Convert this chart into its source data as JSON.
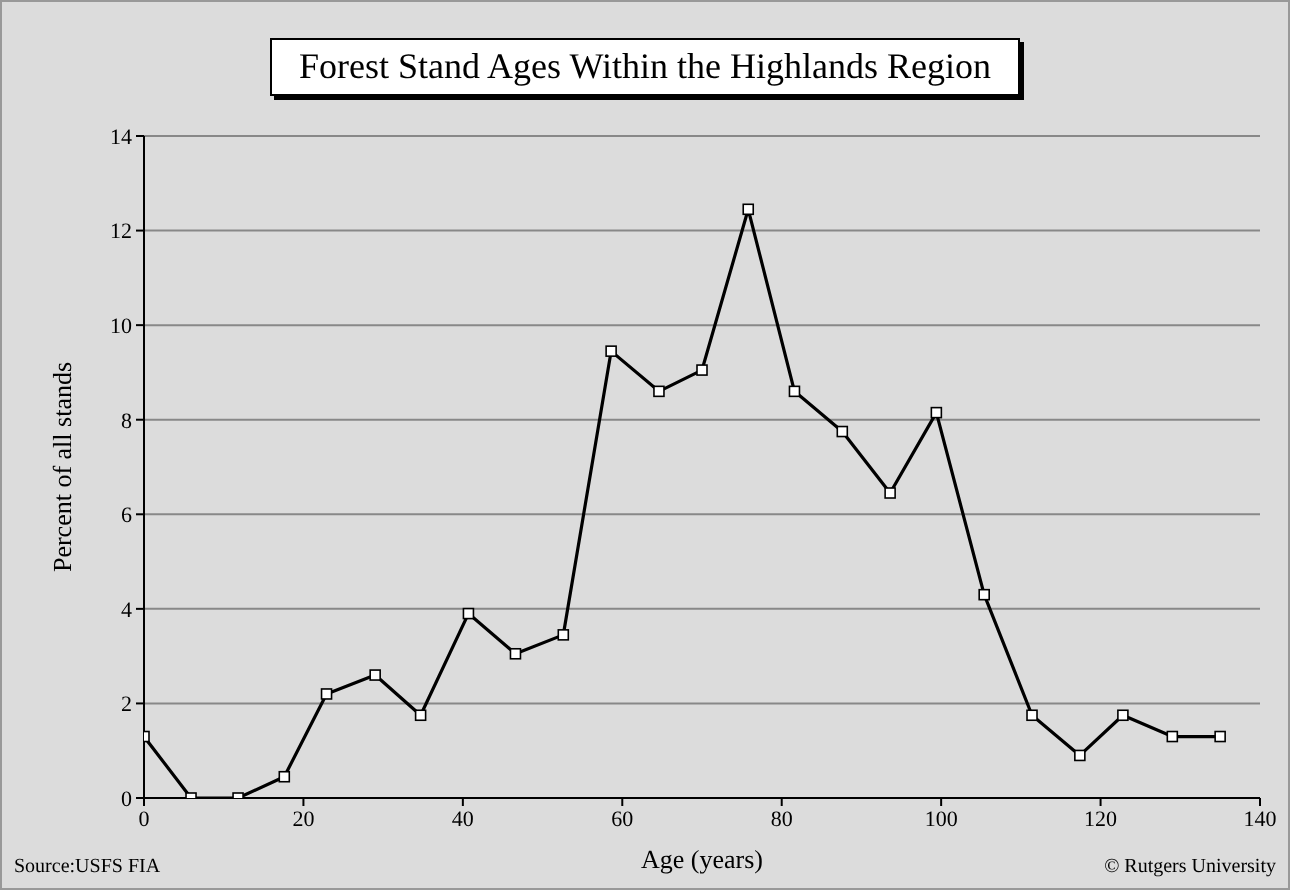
{
  "chart_data": {
    "type": "line",
    "title": "Forest Stand Ages Within the Highlands Region",
    "xlabel": "Age (years)",
    "ylabel": "Percent of all stands",
    "x": [
      0,
      5.9,
      11.8,
      17.6,
      22.9,
      29,
      34.7,
      40.7,
      46.6,
      52.6,
      58.6,
      64.6,
      70,
      75.8,
      81.6,
      87.6,
      93.6,
      99.4,
      105.4,
      111.4,
      117.4,
      122.8,
      129,
      135
    ],
    "series": [
      {
        "color": "#000000",
        "values": [
          1.3,
          0,
          0,
          0.45,
          2.2,
          2.6,
          1.75,
          3.9,
          3.05,
          3.45,
          9.45,
          8.6,
          9.05,
          12.45,
          8.6,
          7.75,
          6.45,
          8.15,
          4.3,
          1.75,
          0.9,
          1.75,
          1.3,
          1.3
        ]
      }
    ],
    "xlim": [
      0,
      140
    ],
    "xticks": [
      0,
      20,
      40,
      60,
      80,
      100,
      120,
      140
    ],
    "ylim": [
      0,
      14
    ],
    "yticks": [
      0,
      2,
      4,
      6,
      8,
      10,
      12,
      14
    ],
    "grid": "y",
    "marker": "square",
    "line_style": "solid",
    "legend": false,
    "annotations": [
      "Source:USFS FIA",
      "© Rutgers University"
    ]
  }
}
